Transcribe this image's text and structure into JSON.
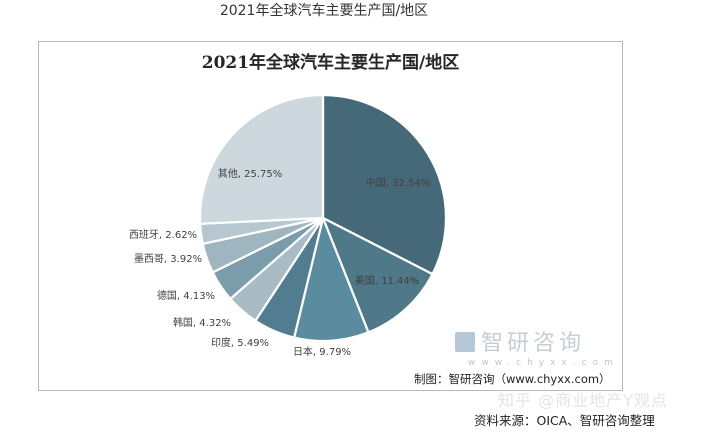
{
  "page_title": "2021年全球汽车主要生产国/地区",
  "chart_data": {
    "type": "pie",
    "title": "2021年全球汽车主要生产国/地区",
    "unit": "%",
    "start_angle_deg": 0,
    "direction": "clockwise",
    "slices": [
      {
        "label": "中国",
        "value": 32.54,
        "display": "中国, 32.54%",
        "color": "#46697a"
      },
      {
        "label": "美国",
        "value": 11.44,
        "display": "美国, 11.44%",
        "color": "#4f7888"
      },
      {
        "label": "日本",
        "value": 9.79,
        "display": "日本, 9.79%",
        "color": "#5a8b9e"
      },
      {
        "label": "印度",
        "value": 5.49,
        "display": "印度, 5.49%",
        "color": "#527d90"
      },
      {
        "label": "韩国",
        "value": 4.32,
        "display": "韩国, 4.32%",
        "color": "#a9bcc5"
      },
      {
        "label": "德国",
        "value": 4.13,
        "display": "德国, 4.13%",
        "color": "#7b9dab"
      },
      {
        "label": "墨西哥",
        "value": 3.92,
        "display": "墨西哥, 3.92%",
        "color": "#9fb5bf"
      },
      {
        "label": "西班牙",
        "value": 2.62,
        "display": "西班牙, 2.62%",
        "color": "#b6c7cf"
      },
      {
        "label": "其他",
        "value": 25.75,
        "display": "其他, 25.75%",
        "color": "#cdd8de"
      }
    ],
    "legend": "none"
  },
  "watermark": {
    "brand": "智研咨询",
    "url": "www.chyxx.com"
  },
  "credit": "制图：智研咨询（www.chyxx.com）",
  "zhihu_watermark": "知乎 @商业地产Y观点",
  "source": "资料来源：OICA、智研咨询整理"
}
